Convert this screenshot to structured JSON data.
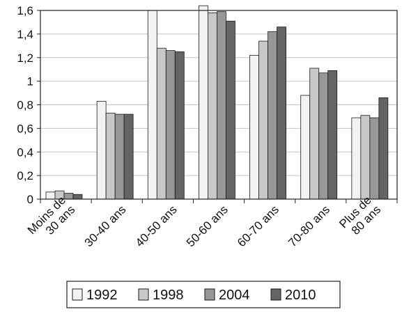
{
  "chart_data": {
    "type": "bar",
    "title": "",
    "xlabel": "",
    "ylabel": "",
    "ylim": [
      0,
      1.6
    ],
    "yticks": [
      "0",
      "0,2",
      "0,4",
      "0,6",
      "0,8",
      "1",
      "1,2",
      "1,4",
      "1,6"
    ],
    "categories": [
      [
        "Moins de",
        "30 ans"
      ],
      [
        "30-40 ans"
      ],
      [
        "40-50 ans"
      ],
      [
        "50-60 ans"
      ],
      [
        "60-70 ans"
      ],
      [
        "70-80 ans"
      ],
      [
        "Plus de",
        "80 ans"
      ]
    ],
    "series": [
      {
        "name": "1992",
        "color": "#f2f2f2",
        "values": [
          0.06,
          0.83,
          1.6,
          1.64,
          1.22,
          0.88,
          0.69
        ]
      },
      {
        "name": "1998",
        "color": "#c8c8c8",
        "values": [
          0.07,
          0.73,
          1.28,
          1.58,
          1.34,
          1.11,
          0.71
        ]
      },
      {
        "name": "2004",
        "color": "#979797",
        "values": [
          0.05,
          0.72,
          1.26,
          1.59,
          1.42,
          1.07,
          0.69
        ]
      },
      {
        "name": "2010",
        "color": "#646464",
        "values": [
          0.04,
          0.72,
          1.25,
          1.51,
          1.46,
          1.09,
          0.86
        ]
      }
    ],
    "grid": "horizontal",
    "legend_position": "bottom"
  }
}
